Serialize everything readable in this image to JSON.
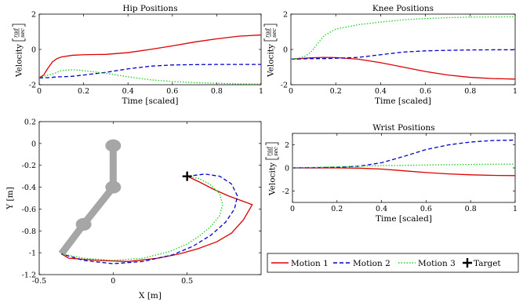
{
  "chart_data": [
    {
      "type": "line",
      "title": "Hip Positions",
      "xlabel": "Time [scaled]",
      "ylabel": "Velocity [rad/sec]",
      "xlim": [
        0,
        1
      ],
      "ylim": [
        -2,
        2
      ],
      "xticks": [
        "0",
        "0.2",
        "0.4",
        "0.6",
        "0.8",
        "1"
      ],
      "yticks": [
        "-2",
        "0",
        "2"
      ],
      "x": [
        0,
        0.02,
        0.04,
        0.06,
        0.08,
        0.1,
        0.15,
        0.2,
        0.3,
        0.4,
        0.5,
        0.6,
        0.7,
        0.8,
        0.9,
        1.0
      ],
      "series": [
        {
          "name": "Motion 1",
          "color": "#dd0000",
          "dash": "solid",
          "values": [
            -1.6,
            -1.45,
            -1.05,
            -0.7,
            -0.52,
            -0.43,
            -0.33,
            -0.3,
            -0.28,
            -0.18,
            0.0,
            0.2,
            0.42,
            0.6,
            0.75,
            0.82
          ]
        },
        {
          "name": "Motion 2",
          "color": "#0000cc",
          "dash": "dashed",
          "values": [
            -1.62,
            -1.6,
            -1.6,
            -1.58,
            -1.55,
            -1.55,
            -1.52,
            -1.45,
            -1.3,
            -1.1,
            -0.95,
            -0.88,
            -0.86,
            -0.85,
            -0.85,
            -0.85
          ]
        },
        {
          "name": "Motion 3",
          "color": "#22cc22",
          "dash": "dotted",
          "values": [
            -1.6,
            -1.52,
            -1.45,
            -1.4,
            -1.3,
            -1.2,
            -1.15,
            -1.2,
            -1.35,
            -1.55,
            -1.72,
            -1.82,
            -1.88,
            -1.92,
            -1.95,
            -1.96
          ]
        }
      ]
    },
    {
      "type": "line",
      "title": "Knee Positions",
      "xlabel": "Time [scaled]",
      "ylabel": "Velocity [rad/sec]",
      "xlim": [
        0,
        1
      ],
      "ylim": [
        -2,
        2
      ],
      "xticks": [
        "0",
        "0.2",
        "0.4",
        "0.6",
        "0.8",
        "1"
      ],
      "yticks": [
        "-2",
        "0",
        "2"
      ],
      "x": [
        0,
        0.02,
        0.04,
        0.06,
        0.08,
        0.1,
        0.12,
        0.15,
        0.2,
        0.3,
        0.4,
        0.5,
        0.6,
        0.7,
        0.8,
        0.9,
        1.0
      ],
      "series": [
        {
          "name": "Motion 1",
          "color": "#dd0000",
          "dash": "solid",
          "values": [
            -0.55,
            -0.53,
            -0.52,
            -0.5,
            -0.48,
            -0.47,
            -0.46,
            -0.45,
            -0.46,
            -0.55,
            -0.75,
            -1.0,
            -1.25,
            -1.45,
            -1.58,
            -1.65,
            -1.68
          ]
        },
        {
          "name": "Motion 2",
          "color": "#0000cc",
          "dash": "dashed",
          "values": [
            -0.55,
            -0.55,
            -0.54,
            -0.53,
            -0.52,
            -0.52,
            -0.52,
            -0.52,
            -0.5,
            -0.45,
            -0.3,
            -0.15,
            -0.08,
            -0.05,
            -0.03,
            -0.02,
            -0.02
          ]
        },
        {
          "name": "Motion 3",
          "color": "#22cc22",
          "dash": "dotted",
          "values": [
            -0.55,
            -0.52,
            -0.48,
            -0.4,
            -0.25,
            0.0,
            0.35,
            0.8,
            1.15,
            1.4,
            1.55,
            1.68,
            1.75,
            1.8,
            1.83,
            1.84,
            1.85
          ]
        }
      ]
    },
    {
      "type": "line",
      "title": "Wrist Positions",
      "xlabel": "Time [scaled]",
      "ylabel": "Velocity [rad/sec]",
      "xlim": [
        0,
        1
      ],
      "ylim": [
        -3,
        3
      ],
      "xticks": [
        "0",
        "0.2",
        "0.4",
        "0.6",
        "0.8",
        "1"
      ],
      "yticks": [
        "-2",
        "0",
        "2"
      ],
      "x": [
        0,
        0.1,
        0.2,
        0.3,
        0.4,
        0.5,
        0.6,
        0.7,
        0.8,
        0.9,
        1.0
      ],
      "series": [
        {
          "name": "Motion 1",
          "color": "#dd0000",
          "dash": "solid",
          "values": [
            0.0,
            0.0,
            0.0,
            -0.02,
            -0.1,
            -0.25,
            -0.4,
            -0.52,
            -0.6,
            -0.65,
            -0.67
          ]
        },
        {
          "name": "Motion 2",
          "color": "#0000cc",
          "dash": "dashed",
          "values": [
            0.0,
            0.02,
            0.05,
            0.15,
            0.45,
            1.0,
            1.6,
            2.0,
            2.25,
            2.38,
            2.42
          ]
        },
        {
          "name": "Motion 3",
          "color": "#22cc22",
          "dash": "dotted",
          "values": [
            0.0,
            0.05,
            0.1,
            0.15,
            0.2,
            0.22,
            0.25,
            0.28,
            0.3,
            0.32,
            0.33
          ]
        }
      ]
    },
    {
      "type": "line",
      "title": "",
      "xlabel": "X [m]",
      "ylabel": "Y [m]",
      "xlim": [
        -0.5,
        1.0
      ],
      "ylim": [
        -1.2,
        0.2
      ],
      "xticks": [
        -0.5,
        0,
        0.5
      ],
      "xtick_labels": [
        "-0.5",
        "0",
        "0.5"
      ],
      "yticks": [
        0.2,
        0,
        -0.2,
        -0.4,
        -0.6,
        -0.8,
        -1,
        -1.2
      ],
      "ytick_labels": [
        "0.2",
        "0",
        "-0.2",
        "-0.4",
        "-0.6",
        "-0.8",
        "-1",
        "-1.2"
      ],
      "arm": {
        "color": "#a6a6a6",
        "joints": [
          [
            0,
            -0.02
          ],
          [
            0,
            -0.4
          ],
          [
            -0.2,
            -0.74
          ],
          [
            -0.35,
            -1.01
          ]
        ],
        "joint_markers": [
          [
            0,
            -0.02
          ],
          [
            0,
            -0.4
          ],
          [
            -0.2,
            -0.74
          ]
        ]
      },
      "target": {
        "x": 0.5,
        "y": -0.3
      },
      "series": [
        {
          "name": "Motion 1",
          "color": "#dd0000",
          "dash": "solid",
          "x": [
            0.5,
            0.58,
            0.68,
            0.78,
            0.86,
            0.94,
            0.88,
            0.8,
            0.7,
            0.58,
            0.45,
            0.3,
            0.1,
            -0.1,
            -0.3,
            -0.35
          ],
          "y": [
            -0.3,
            -0.35,
            -0.42,
            -0.48,
            -0.52,
            -0.56,
            -0.7,
            -0.82,
            -0.9,
            -0.96,
            -1.01,
            -1.05,
            -1.08,
            -1.07,
            -1.05,
            -1.01
          ]
        },
        {
          "name": "Motion 2",
          "color": "#0000cc",
          "dash": "dashed",
          "x": [
            0.5,
            0.62,
            0.72,
            0.8,
            0.84,
            0.82,
            0.76,
            0.66,
            0.54,
            0.4,
            0.2,
            0.0,
            -0.2,
            -0.35
          ],
          "y": [
            -0.3,
            -0.28,
            -0.3,
            -0.37,
            -0.48,
            -0.6,
            -0.72,
            -0.84,
            -0.94,
            -1.02,
            -1.08,
            -1.1,
            -1.07,
            -1.01
          ]
        },
        {
          "name": "Motion 3",
          "color": "#22cc22",
          "dash": "dotted",
          "x": [
            0.5,
            0.58,
            0.66,
            0.72,
            0.74,
            0.72,
            0.66,
            0.58,
            0.5,
            0.38,
            0.2,
            0.0,
            -0.2,
            -0.35
          ],
          "y": [
            -0.3,
            -0.32,
            -0.38,
            -0.46,
            -0.56,
            -0.66,
            -0.76,
            -0.85,
            -0.92,
            -0.99,
            -1.05,
            -1.07,
            -1.05,
            -1.01
          ]
        }
      ]
    }
  ],
  "legend": {
    "entries": [
      {
        "label": "Motion 1",
        "color": "#dd0000",
        "dash": "solid"
      },
      {
        "label": "Motion 2",
        "color": "#0000cc",
        "dash": "dashed"
      },
      {
        "label": "Motion 3",
        "color": "#22cc22",
        "dash": "dotted"
      },
      {
        "label": "Target",
        "color": "#000000",
        "marker": "plus"
      }
    ]
  },
  "ylabel_text": "Velocity",
  "ylabel_fraction": {
    "numerator": "rad",
    "denominator": "sec"
  }
}
